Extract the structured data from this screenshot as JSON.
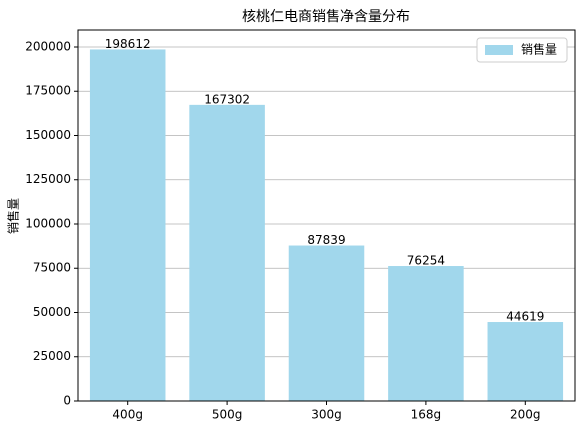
{
  "chart_data": {
    "type": "bar",
    "title": "核桃仁电商销售净含量分布",
    "y_label": "销售量",
    "categories": [
      "400g",
      "500g",
      "300g",
      "168g",
      "200g"
    ],
    "series": [
      {
        "name": "销售量",
        "color": "#a1d7ec",
        "values": [
          198612,
          167302,
          87839,
          76254,
          44619
        ]
      }
    ],
    "ylim": [
      0,
      209600
    ],
    "yticks": [
      0,
      25000,
      50000,
      75000,
      100000,
      125000,
      150000,
      175000,
      200000
    ],
    "grid": true,
    "legend": "upper right"
  }
}
